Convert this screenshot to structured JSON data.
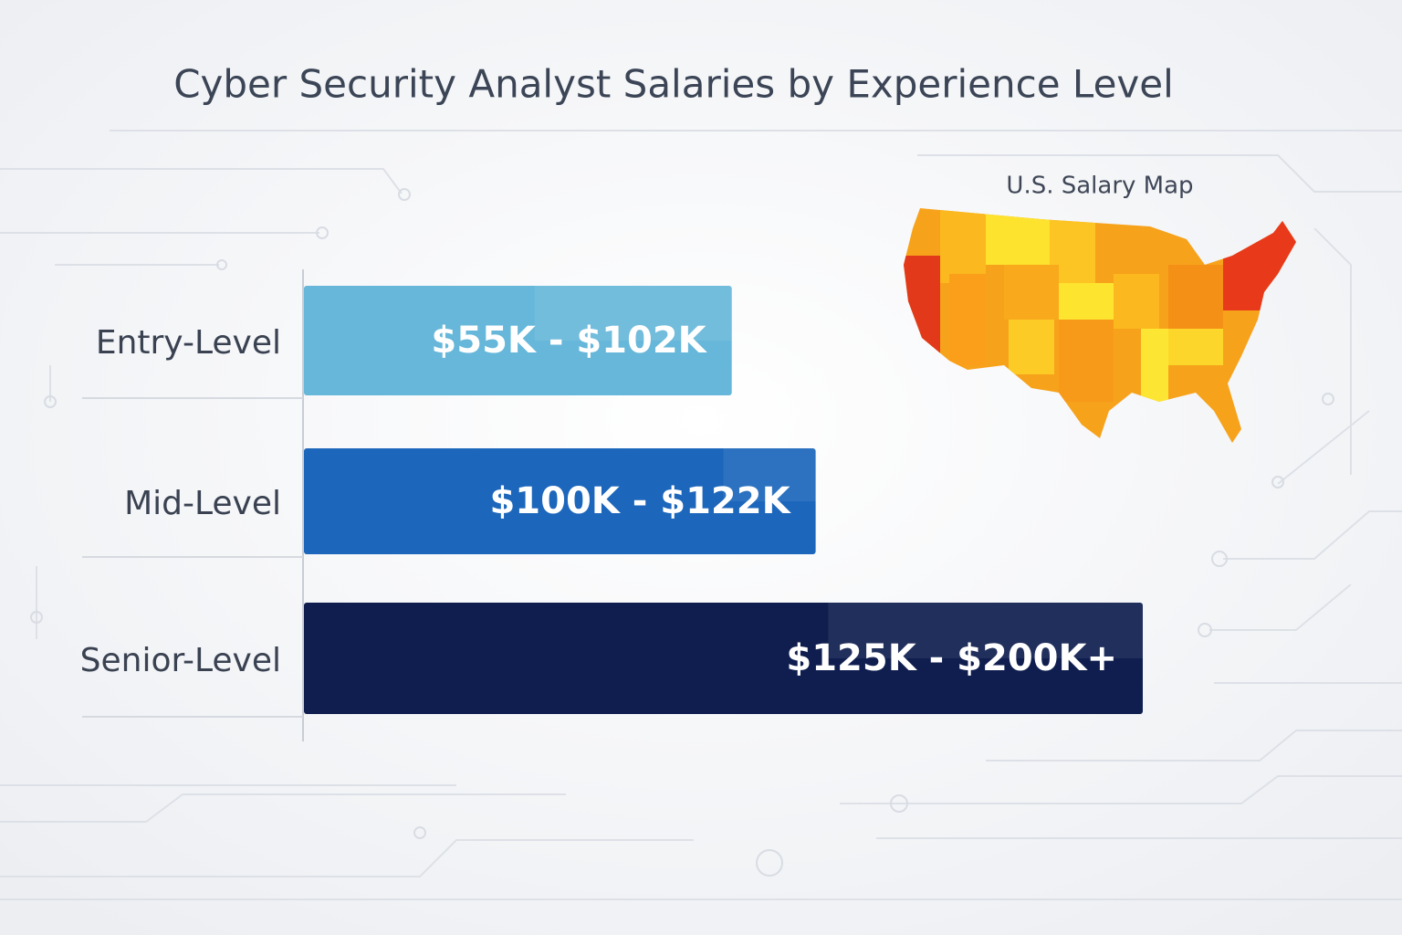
{
  "chart_data": {
    "type": "range_bar",
    "title": "Cyber Security Analyst Salaries by Experience Level",
    "categories": [
      "Entry-Level",
      "Mid-Level",
      "Senior-Level"
    ],
    "low": [
      55,
      100,
      125
    ],
    "high": [
      102,
      122,
      200
    ],
    "value_labels": [
      "$55K - $102K",
      "$100K - $122K",
      "$125K - $200K+"
    ],
    "colors": [
      "#66b7da",
      "#1c66bb",
      "#0f1e4f"
    ]
  },
  "map": {
    "title": "U.S. Salary Map"
  }
}
